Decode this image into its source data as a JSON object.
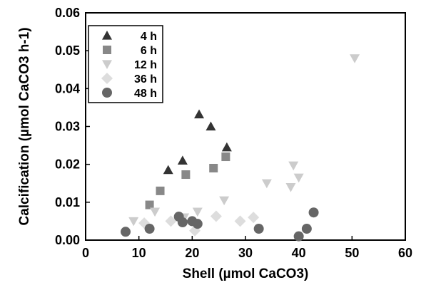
{
  "chart_data": {
    "type": "scatter",
    "xlabel": "Shell (µmol CaCO3)",
    "ylabel": "Calcification (µmol CaCO3 h-1)",
    "xlim": [
      0,
      60
    ],
    "ylim": [
      0,
      0.06
    ],
    "x_ticks": [
      "0",
      "10",
      "20",
      "30",
      "40",
      "50",
      "60"
    ],
    "y_ticks": [
      "0.00",
      "0.01",
      "0.02",
      "0.03",
      "0.04",
      "0.05",
      "0.06"
    ],
    "legend_position": "top-left",
    "grid": false,
    "series": [
      {
        "name": "4 h",
        "marker": "triangle-up",
        "color": "#333333",
        "points": [
          [
            15.5,
            0.0185
          ],
          [
            18.2,
            0.021
          ],
          [
            21.3,
            0.0332
          ],
          [
            23.5,
            0.03
          ],
          [
            26.5,
            0.0245
          ]
        ]
      },
      {
        "name": "6 h",
        "marker": "square",
        "color": "#888888",
        "points": [
          [
            12.0,
            0.0093
          ],
          [
            14.0,
            0.013
          ],
          [
            18.8,
            0.0173
          ],
          [
            24.0,
            0.019
          ],
          [
            26.3,
            0.022
          ]
        ]
      },
      {
        "name": "12 h",
        "marker": "triangle-down",
        "color": "#cccccc",
        "points": [
          [
            9.0,
            0.005
          ],
          [
            13.0,
            0.0075
          ],
          [
            18.5,
            0.006
          ],
          [
            21.0,
            0.0075
          ],
          [
            26.0,
            0.0105
          ],
          [
            34.0,
            0.015
          ],
          [
            38.5,
            0.014
          ],
          [
            39.0,
            0.0197
          ],
          [
            40.0,
            0.0165
          ],
          [
            50.5,
            0.048
          ]
        ]
      },
      {
        "name": "36 h",
        "marker": "diamond",
        "color": "#dddddd",
        "points": [
          [
            11.0,
            0.0045
          ],
          [
            16.0,
            0.005
          ],
          [
            20.5,
            0.0025
          ],
          [
            24.5,
            0.0063
          ],
          [
            29.0,
            0.005
          ],
          [
            31.5,
            0.006
          ]
        ]
      },
      {
        "name": "48 h",
        "marker": "circle",
        "color": "#666666",
        "points": [
          [
            7.5,
            0.0022
          ],
          [
            12.0,
            0.003
          ],
          [
            17.5,
            0.0062
          ],
          [
            18.2,
            0.0047
          ],
          [
            20.0,
            0.005
          ],
          [
            21.0,
            0.0043
          ],
          [
            32.5,
            0.003
          ],
          [
            40.0,
            0.001
          ],
          [
            41.5,
            0.003
          ],
          [
            42.8,
            0.0073
          ]
        ]
      }
    ]
  }
}
